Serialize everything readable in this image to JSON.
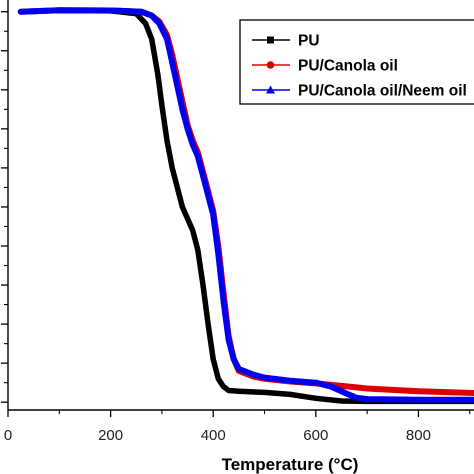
{
  "chart_data": {
    "type": "line",
    "title": "",
    "xlabel": "Temperature (°C)",
    "ylabel": "",
    "xlim": [
      0,
      920
    ],
    "ylim": [
      -2,
      103
    ],
    "x_ticks": [
      0,
      200,
      400,
      600,
      800
    ],
    "y_ticks": [
      0,
      10,
      20,
      30,
      40,
      50,
      60,
      70,
      80,
      90,
      100
    ],
    "grid": false,
    "legend_position": "top-right",
    "series": [
      {
        "name": "PU",
        "color": "#000000",
        "marker": "square",
        "x": [
          25,
          100,
          200,
          250,
          268,
          280,
          292,
          300,
          310,
          320,
          330,
          340,
          350,
          360,
          370,
          380,
          390,
          400,
          410,
          420,
          430,
          450,
          500,
          550,
          600,
          650,
          700,
          800,
          920
        ],
        "y": [
          100,
          100.3,
          100.2,
          99.5,
          97,
          93,
          84,
          76,
          67,
          60,
          55,
          50,
          47,
          44,
          39,
          30,
          20,
          11,
          6,
          4,
          3,
          2.8,
          2.5,
          2,
          1,
          0.3,
          0.2,
          0.2,
          0.2
        ]
      },
      {
        "name": "PU/Canola oil",
        "color": "#dd0000",
        "marker": "circle",
        "x": [
          25,
          100,
          200,
          260,
          280,
          295,
          310,
          320,
          330,
          340,
          350,
          360,
          370,
          380,
          390,
          400,
          410,
          420,
          430,
          440,
          450,
          480,
          500,
          550,
          600,
          650,
          700,
          800,
          920
        ],
        "y": [
          100,
          100.4,
          100.3,
          100,
          99,
          97.5,
          94,
          89,
          83,
          77,
          71,
          67,
          64,
          59,
          54,
          49,
          40,
          28,
          17,
          11,
          8,
          6.5,
          6,
          5.3,
          4.8,
          4.2,
          3.5,
          2.8,
          2.3
        ]
      },
      {
        "name": "PU/Canola oil/Neem oil",
        "color": "#0000ee",
        "marker": "triangle",
        "x": [
          25,
          100,
          200,
          260,
          280,
          295,
          310,
          320,
          330,
          340,
          350,
          360,
          370,
          380,
          390,
          400,
          410,
          420,
          430,
          440,
          450,
          480,
          500,
          550,
          600,
          630,
          660,
          680,
          700,
          800,
          920
        ],
        "y": [
          100,
          100.4,
          100.3,
          100,
          99,
          97,
          93,
          87,
          81,
          75,
          70,
          66,
          63,
          58,
          53,
          48,
          38,
          26,
          16,
          11,
          8.5,
          7,
          6.3,
          5.5,
          5,
          4,
          2.2,
          1.1,
          0.8,
          0.6,
          0.6
        ]
      }
    ]
  }
}
